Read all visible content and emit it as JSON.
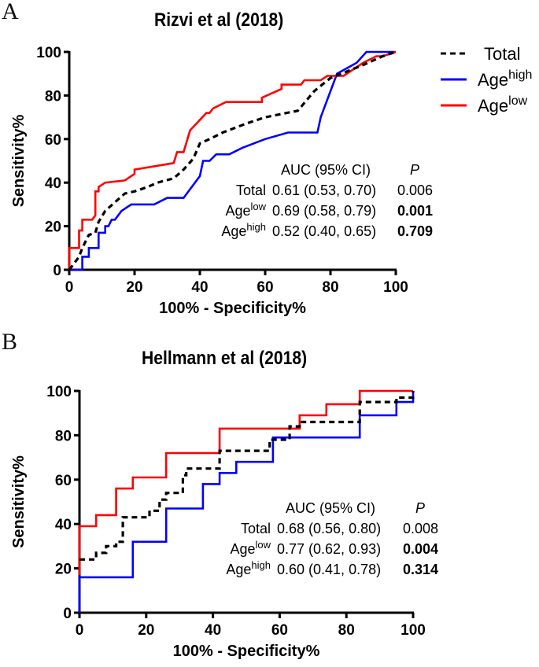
{
  "figure": {
    "panel_labels": [
      "A",
      "B"
    ]
  },
  "legend": {
    "items": [
      {
        "name": "Total",
        "label": "Total",
        "sup": "",
        "color": "#000000",
        "dash": true
      },
      {
        "name": "Age-high",
        "label": "Age",
        "sup": "high",
        "color": "#0000ff",
        "dash": false
      },
      {
        "name": "Age-low",
        "label": "Age",
        "sup": "low",
        "color": "#ff0000",
        "dash": false
      }
    ]
  },
  "chart_data": [
    {
      "type": "line",
      "title": "Rizvi et al (2018)",
      "xlabel": "100% - Specificity%",
      "ylabel": "Sensitivity%",
      "xlim": [
        0,
        100
      ],
      "ylim": [
        0,
        100
      ],
      "xticks": [
        "0",
        "20",
        "40",
        "60",
        "80",
        "100"
      ],
      "yticks": [
        "0",
        "20",
        "40",
        "60",
        "80",
        "100"
      ],
      "grid": false,
      "legend_position": "right",
      "series": [
        {
          "name": "Total",
          "color": "#000000",
          "style": "dashed",
          "points": [
            [
              0,
              0
            ],
            [
              1,
              2
            ],
            [
              3,
              6
            ],
            [
              4,
              10
            ],
            [
              6,
              16
            ],
            [
              8,
              17
            ],
            [
              9,
              22
            ],
            [
              11,
              27
            ],
            [
              14,
              31
            ],
            [
              17,
              35
            ],
            [
              20,
              36
            ],
            [
              24,
              38
            ],
            [
              27,
              40
            ],
            [
              32,
              42
            ],
            [
              35,
              46
            ],
            [
              38,
              51
            ],
            [
              40,
              58
            ],
            [
              43,
              60
            ],
            [
              47,
              63
            ],
            [
              54,
              67
            ],
            [
              60,
              70
            ],
            [
              70,
              73
            ],
            [
              75,
              82
            ],
            [
              80,
              88
            ],
            [
              85,
              91
            ],
            [
              90,
              94
            ],
            [
              96,
              98
            ],
            [
              100,
              100
            ]
          ]
        },
        {
          "name": "Age-high",
          "color": "#0000ff",
          "style": "solid",
          "points": [
            [
              0,
              0
            ],
            [
              4,
              0
            ],
            [
              4,
              6
            ],
            [
              6,
              6
            ],
            [
              6,
              10
            ],
            [
              9,
              10
            ],
            [
              9,
              17
            ],
            [
              11,
              17
            ],
            [
              11,
              20
            ],
            [
              12,
              20
            ],
            [
              13,
              23
            ],
            [
              14,
              23
            ],
            [
              16,
              27
            ],
            [
              19,
              30
            ],
            [
              26,
              30
            ],
            [
              30,
              33
            ],
            [
              35,
              33
            ],
            [
              40,
              43
            ],
            [
              41,
              50
            ],
            [
              43,
              50
            ],
            [
              45,
              53
            ],
            [
              49,
              53
            ],
            [
              53,
              56
            ],
            [
              60,
              60
            ],
            [
              67,
              63
            ],
            [
              76,
              63
            ],
            [
              77,
              70
            ],
            [
              82,
              90
            ],
            [
              88,
              95
            ],
            [
              91,
              100
            ],
            [
              100,
              100
            ]
          ]
        },
        {
          "name": "Age-low",
          "color": "#ff0000",
          "style": "solid",
          "points": [
            [
              0,
              0
            ],
            [
              0,
              10
            ],
            [
              3,
              10
            ],
            [
              3,
              18
            ],
            [
              4,
              18
            ],
            [
              4,
              23
            ],
            [
              7,
              23
            ],
            [
              8,
              25
            ],
            [
              8,
              36
            ],
            [
              9,
              36
            ],
            [
              9,
              38
            ],
            [
              11,
              40
            ],
            [
              17,
              41
            ],
            [
              20,
              44
            ],
            [
              20,
              46
            ],
            [
              32,
              49
            ],
            [
              33,
              54
            ],
            [
              35,
              54
            ],
            [
              37,
              64
            ],
            [
              42,
              72
            ],
            [
              43,
              72
            ],
            [
              44,
              74
            ],
            [
              48,
              77
            ],
            [
              59,
              77
            ],
            [
              59,
              79
            ],
            [
              65,
              83
            ],
            [
              65,
              85
            ],
            [
              71,
              85
            ],
            [
              72,
              87
            ],
            [
              77,
              87
            ],
            [
              79,
              89
            ],
            [
              84,
              89
            ],
            [
              90,
              95
            ],
            [
              94,
              98
            ],
            [
              96,
              98
            ],
            [
              100,
              100
            ]
          ]
        }
      ],
      "stats_table": {
        "header": [
          "",
          "AUC (95% CI)",
          "P"
        ],
        "rows": [
          {
            "label": "Total",
            "sup": "",
            "auc": "0.61 (0.53, 0.70)",
            "p": "0.006",
            "p_bold": false
          },
          {
            "label": "Age",
            "sup": "low",
            "auc": "0.69 (0.58, 0.79)",
            "p": "0.001",
            "p_bold": true
          },
          {
            "label": "Age",
            "sup": "high",
            "auc": "0.52 (0.40, 0.65)",
            "p": "0.709",
            "p_bold": true
          }
        ]
      }
    },
    {
      "type": "line",
      "title": "Hellmann et al (2018)",
      "xlabel": "100% - Specificity%",
      "ylabel": "Sensitivity%",
      "xlim": [
        0,
        100
      ],
      "ylim": [
        0,
        100
      ],
      "xticks": [
        "0",
        "20",
        "40",
        "60",
        "80",
        "100"
      ],
      "yticks": [
        "0",
        "20",
        "40",
        "60",
        "80",
        "100"
      ],
      "grid": false,
      "legend_position": "none",
      "series": [
        {
          "name": "Total",
          "color": "#000000",
          "style": "dashed",
          "points": [
            [
              0,
              24
            ],
            [
              5,
              24
            ],
            [
              5,
              27
            ],
            [
              8,
              27
            ],
            [
              8,
              30
            ],
            [
              11,
              30
            ],
            [
              11,
              32
            ],
            [
              13,
              32
            ],
            [
              13,
              43
            ],
            [
              21,
              43
            ],
            [
              21,
              46
            ],
            [
              24,
              46
            ],
            [
              24,
              51
            ],
            [
              26,
              51
            ],
            [
              26,
              54
            ],
            [
              31,
              54
            ],
            [
              31,
              62
            ],
            [
              32,
              62
            ],
            [
              32,
              65
            ],
            [
              42,
              65
            ],
            [
              42,
              73
            ],
            [
              57,
              73
            ],
            [
              57,
              78
            ],
            [
              63,
              78
            ],
            [
              63,
              84
            ],
            [
              66,
              84
            ],
            [
              66,
              86
            ],
            [
              84,
              86
            ],
            [
              84,
              95
            ],
            [
              95,
              95
            ],
            [
              95,
              97
            ],
            [
              100,
              97
            ],
            [
              100,
              100
            ]
          ]
        },
        {
          "name": "Age-high",
          "color": "#0000ff",
          "style": "solid",
          "points": [
            [
              0,
              0
            ],
            [
              0,
              16
            ],
            [
              16,
              16
            ],
            [
              16,
              32
            ],
            [
              26,
              32
            ],
            [
              26,
              47
            ],
            [
              37,
              47
            ],
            [
              37,
              58
            ],
            [
              42,
              58
            ],
            [
              42,
              63
            ],
            [
              47,
              63
            ],
            [
              47,
              68
            ],
            [
              58,
              68
            ],
            [
              58,
              79
            ],
            [
              84,
              79
            ],
            [
              84,
              89
            ],
            [
              95,
              89
            ],
            [
              95,
              95
            ],
            [
              100,
              95
            ],
            [
              100,
              100
            ]
          ]
        },
        {
          "name": "Age-low",
          "color": "#ff0000",
          "style": "solid",
          "points": [
            [
              0,
              17
            ],
            [
              0,
              39
            ],
            [
              5,
              39
            ],
            [
              5,
              44
            ],
            [
              11,
              44
            ],
            [
              11,
              56
            ],
            [
              16,
              56
            ],
            [
              16,
              61
            ],
            [
              26,
              61
            ],
            [
              26,
              72
            ],
            [
              42,
              72
            ],
            [
              42,
              83
            ],
            [
              66,
              83
            ],
            [
              66,
              89
            ],
            [
              74,
              89
            ],
            [
              74,
              94
            ],
            [
              84,
              94
            ],
            [
              84,
              100
            ],
            [
              100,
              100
            ]
          ]
        }
      ],
      "stats_table": {
        "header": [
          "",
          "AUC (95% CI)",
          "P"
        ],
        "rows": [
          {
            "label": "Total",
            "sup": "",
            "auc": "0.68 (0.56, 0.80)",
            "p": "0.008",
            "p_bold": false
          },
          {
            "label": "Age",
            "sup": "low",
            "auc": "0.77 (0.62, 0.93)",
            "p": "0.004",
            "p_bold": true
          },
          {
            "label": "Age",
            "sup": "high",
            "auc": "0.60 (0.41, 0.78)",
            "p": "0.314",
            "p_bold": true
          }
        ]
      }
    }
  ]
}
